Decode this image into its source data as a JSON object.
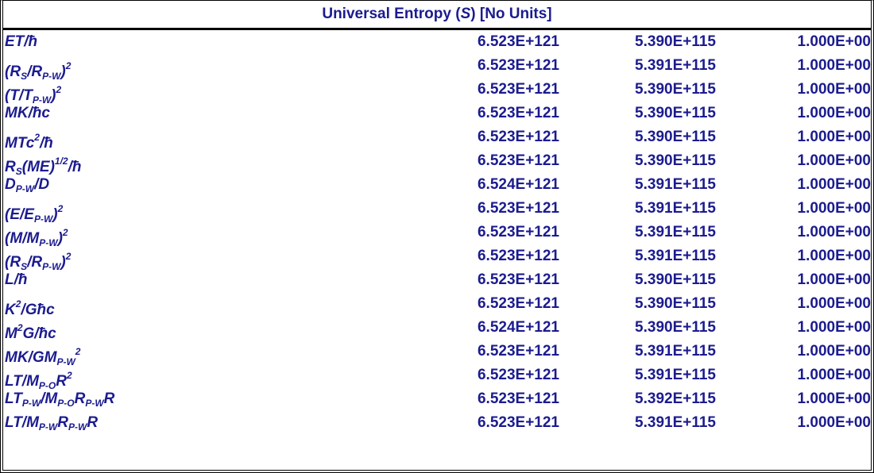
{
  "table": {
    "title": [
      "Universal Entropy (",
      "S",
      ") [No Units]"
    ],
    "rows": [
      {
        "label": [
          "ET/ħ"
        ],
        "values": [
          "6.523E+121",
          "5.390E+115",
          "1.000E+00"
        ]
      },
      {
        "label": [
          "(R",
          {
            "sub": "S"
          },
          "/R",
          {
            "sub": "P-W"
          },
          ")",
          {
            "sup": "2"
          }
        ],
        "values": [
          "6.523E+121",
          "5.391E+115",
          "1.000E+00"
        ]
      },
      {
        "label": [
          "(T/T",
          {
            "sub": "P-W"
          },
          ")",
          {
            "sup": "2"
          }
        ],
        "values": [
          "6.523E+121",
          "5.390E+115",
          "1.000E+00"
        ]
      },
      {
        "label": [
          "MK/ħc"
        ],
        "values": [
          "6.523E+121",
          "5.390E+115",
          "1.000E+00"
        ]
      },
      {
        "label": [
          "MTc",
          {
            "sup": "2"
          },
          "/ħ"
        ],
        "values": [
          "6.523E+121",
          "5.390E+115",
          "1.000E+00"
        ]
      },
      {
        "label": [
          "R",
          {
            "sub": "S"
          },
          "(ME)",
          {
            "sup": "1/2"
          },
          "/ħ"
        ],
        "values": [
          "6.523E+121",
          "5.390E+115",
          "1.000E+00"
        ]
      },
      {
        "label": [
          "D",
          {
            "sub": "P-W"
          },
          "/D"
        ],
        "values": [
          "6.524E+121",
          "5.391E+115",
          "1.000E+00"
        ]
      },
      {
        "label": [
          "(E/E",
          {
            "sub": "P-W"
          },
          ")",
          {
            "sup": "2"
          }
        ],
        "values": [
          "6.523E+121",
          "5.391E+115",
          "1.000E+00"
        ]
      },
      {
        "label": [
          "(M/M",
          {
            "sub": "P-W"
          },
          ")",
          {
            "sup": "2"
          }
        ],
        "values": [
          "6.523E+121",
          "5.391E+115",
          "1.000E+00"
        ]
      },
      {
        "label": [
          "(R",
          {
            "sub": "S"
          },
          "/R",
          {
            "sub": "P-W"
          },
          ")",
          {
            "sup": "2"
          }
        ],
        "values": [
          "6.523E+121",
          "5.391E+115",
          "1.000E+00"
        ]
      },
      {
        "label": [
          "L/ħ"
        ],
        "values": [
          "6.523E+121",
          "5.390E+115",
          "1.000E+00"
        ]
      },
      {
        "label": [
          "K",
          {
            "sup": "2"
          },
          "/Għc"
        ],
        "values": [
          "6.523E+121",
          "5.390E+115",
          "1.000E+00"
        ]
      },
      {
        "label": [
          "M",
          {
            "sup": "2"
          },
          "G/ħc"
        ],
        "values": [
          "6.524E+121",
          "5.390E+115",
          "1.000E+00"
        ]
      },
      {
        "label": [
          "MK/GM",
          {
            "sub": "P-W"
          },
          {
            "sup": "2"
          }
        ],
        "values": [
          "6.523E+121",
          "5.391E+115",
          "1.000E+00"
        ]
      },
      {
        "label": [
          "LT/M",
          {
            "sub": "P-O"
          },
          "R",
          {
            "sup": "2"
          }
        ],
        "values": [
          "6.523E+121",
          "5.391E+115",
          "1.000E+00"
        ]
      },
      {
        "label": [
          "LT",
          {
            "sub": "P-W"
          },
          "/M",
          {
            "sub": "P-O"
          },
          "R",
          {
            "sub": "P-W"
          },
          "R"
        ],
        "values": [
          "6.523E+121",
          "5.392E+115",
          "1.000E+00"
        ]
      },
      {
        "label": [
          "LT/M",
          {
            "sub": "P-W"
          },
          "R",
          {
            "sub": "P-W"
          },
          "R"
        ],
        "values": [
          "6.523E+121",
          "5.391E+115",
          "1.000E+00"
        ]
      }
    ]
  }
}
